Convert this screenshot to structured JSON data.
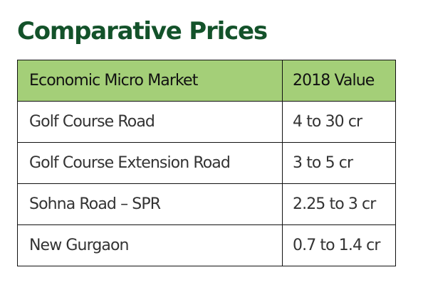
{
  "title": "Comparative Prices",
  "table": {
    "headers": {
      "market": "Economic Micro Market",
      "value": "2018 Value"
    },
    "rows": [
      {
        "market": "Golf Course Road",
        "value": "4 to 30 cr"
      },
      {
        "market": "Golf Course Extension Road",
        "value": "3 to 5 cr"
      },
      {
        "market": "Sohna Road – SPR",
        "value": "2.25 to 3 cr"
      },
      {
        "market": "New Gurgaon",
        "value": "0.7 to 1.4 cr"
      }
    ]
  },
  "colors": {
    "title": "#13522a",
    "header_background": "#a4cf78",
    "border": "#111111",
    "text": "#333333"
  }
}
